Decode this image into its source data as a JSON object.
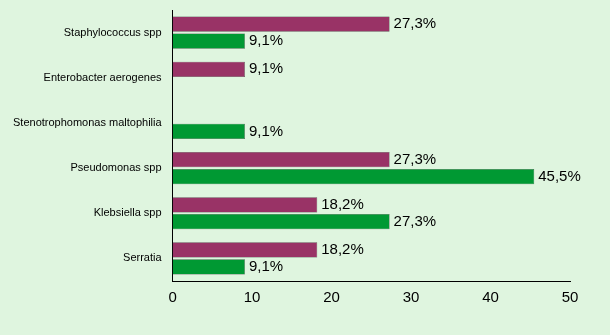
{
  "chart_data": {
    "type": "bar",
    "orientation": "horizontal",
    "categories": [
      "Staphylococcus spp",
      "Enterobacter aerogenes",
      "Stenotrophomonas maltophilia",
      "Pseudomonas spp",
      "Klebsiella spp",
      "Serratia"
    ],
    "series": [
      {
        "color": "#993366",
        "values": [
          27.3,
          9.1,
          null,
          27.3,
          18.2,
          18.2
        ],
        "value_labels": [
          "27,3%",
          "9,1%",
          null,
          "27,3%",
          "18,2%",
          "18,2%"
        ]
      },
      {
        "color": "#009933",
        "values": [
          9.1,
          null,
          9.1,
          45.5,
          27.3,
          9.1
        ],
        "value_labels": [
          "9,1%",
          null,
          "9,1%",
          "45,5%",
          "27,3%",
          "9,1%"
        ]
      }
    ],
    "xlim": [
      0,
      50
    ],
    "xticks": [
      0,
      10,
      20,
      30,
      40,
      50
    ],
    "grid": false,
    "data_labels": true
  }
}
